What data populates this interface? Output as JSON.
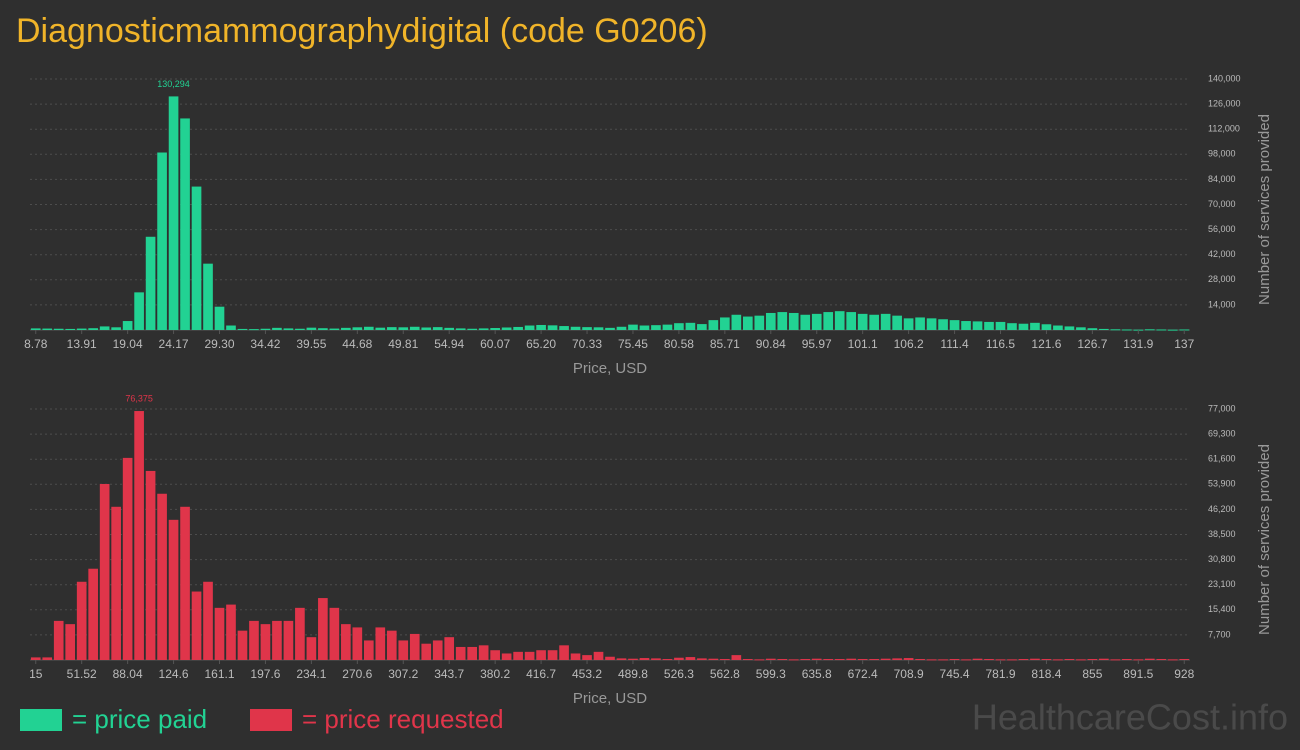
{
  "title": "Diagnosticmammographydigital (code G0206)",
  "watermark": "HealthcareCost.info",
  "chart_data": [
    {
      "type": "bar",
      "xlabel": "Price, USD",
      "ylabel": "Number of services provided",
      "grid": true,
      "categories": [
        "8.78",
        null,
        null,
        null,
        "13.91",
        null,
        null,
        null,
        "19.04",
        null,
        null,
        null,
        "24.17",
        null,
        null,
        null,
        "29.30",
        null,
        null,
        null,
        "34.42",
        null,
        null,
        null,
        "39.55",
        null,
        null,
        null,
        "44.68",
        null,
        null,
        null,
        "49.81",
        null,
        null,
        null,
        "54.94",
        null,
        null,
        null,
        "60.07",
        null,
        null,
        null,
        "65.20",
        null,
        null,
        null,
        "70.33",
        null,
        null,
        null,
        "75.45",
        null,
        null,
        null,
        "80.58",
        null,
        null,
        null,
        "85.71",
        null,
        null,
        null,
        "90.84",
        null,
        null,
        null,
        "95.97",
        null,
        null,
        null,
        "101.1",
        null,
        null,
        null,
        "106.2",
        null,
        null,
        null,
        "111.4",
        null,
        null,
        null,
        "116.5",
        null,
        null,
        null,
        "121.6",
        null,
        null,
        null,
        "126.7",
        null,
        null,
        null,
        "131.9",
        null,
        null,
        null,
        "137"
      ],
      "series": [
        {
          "name": "= price paid",
          "color": "#22d293",
          "values": [
            900,
            800,
            700,
            600,
            800,
            1000,
            2000,
            1500,
            5000,
            21000,
            52000,
            99000,
            130294,
            118000,
            80000,
            37000,
            13000,
            2500,
            600,
            500,
            700,
            1200,
            900,
            700,
            1300,
            1000,
            800,
            1200,
            1500,
            1800,
            1300,
            1600,
            1500,
            1800,
            1400,
            1600,
            1200,
            900,
            700,
            900,
            1100,
            1400,
            1700,
            2500,
            2800,
            2600,
            2200,
            1800,
            1600,
            1500,
            1200,
            1800,
            3000,
            2500,
            2700,
            3000,
            3800,
            4000,
            3300,
            5500,
            7000,
            8500,
            7500,
            8000,
            9500,
            10000,
            9500,
            8500,
            9000,
            10000,
            10500,
            10000,
            9000,
            8500,
            9000,
            8000,
            6500,
            7000,
            6500,
            6000,
            5500,
            5000,
            4800,
            4500,
            4500,
            3800,
            3500,
            4000,
            3200,
            2500,
            2000,
            1500,
            1000,
            600,
            400,
            300,
            200,
            400,
            300,
            200,
            300
          ],
          "value_labels": [
            null,
            null,
            null,
            null,
            null,
            null,
            null,
            null,
            null,
            null,
            null,
            null,
            "130,294",
            null,
            null,
            null,
            null,
            null,
            null,
            null,
            null,
            null,
            null,
            null,
            null,
            null,
            null,
            null,
            null,
            null,
            null,
            null,
            null,
            null,
            null,
            null,
            null,
            null,
            null,
            null,
            null,
            null,
            null,
            null,
            null,
            null,
            null,
            null,
            null,
            null,
            null,
            null,
            null,
            null,
            null,
            null,
            null,
            null,
            null,
            null,
            null,
            null,
            null,
            null,
            null,
            null,
            null,
            null,
            null,
            null,
            null,
            null,
            null,
            null,
            null,
            null,
            null,
            null,
            null,
            null,
            null,
            null,
            null,
            null,
            null,
            null,
            null,
            null,
            null,
            null,
            null,
            null,
            null,
            null,
            null,
            null,
            null,
            null,
            null,
            null,
            null
          ]
        }
      ],
      "ylim": [
        0,
        140000
      ],
      "yticks": [
        {
          "value": 14000,
          "label": "14,000"
        },
        {
          "value": 28000,
          "label": "28,000"
        },
        {
          "value": 42000,
          "label": "42,000"
        },
        {
          "value": 56000,
          "label": "56,000"
        },
        {
          "value": 70000,
          "label": "70,000"
        },
        {
          "value": 84000,
          "label": "84,000"
        },
        {
          "value": 98000,
          "label": "98,000"
        },
        {
          "value": 112000,
          "label": "112,000"
        },
        {
          "value": 126000,
          "label": "126,000"
        },
        {
          "value": 140000,
          "label": "140,000"
        }
      ]
    },
    {
      "type": "bar",
      "xlabel": "Price, USD",
      "ylabel": "Number of services provided",
      "grid": true,
      "categories": [
        "15",
        null,
        null,
        null,
        "51.52",
        null,
        null,
        null,
        "88.04",
        null,
        null,
        null,
        "124.6",
        null,
        null,
        null,
        "161.1",
        null,
        null,
        null,
        "197.6",
        null,
        null,
        null,
        "234.1",
        null,
        null,
        null,
        "270.6",
        null,
        null,
        null,
        "307.2",
        null,
        null,
        null,
        "343.7",
        null,
        null,
        null,
        "380.2",
        null,
        null,
        null,
        "416.7",
        null,
        null,
        null,
        "453.2",
        null,
        null,
        null,
        "489.8",
        null,
        null,
        null,
        "526.3",
        null,
        null,
        null,
        "562.8",
        null,
        null,
        null,
        "599.3",
        null,
        null,
        null,
        "635.8",
        null,
        null,
        null,
        "672.4",
        null,
        null,
        null,
        "708.9",
        null,
        null,
        null,
        "745.4",
        null,
        null,
        null,
        "781.9",
        null,
        null,
        null,
        "818.4",
        null,
        null,
        null,
        "855",
        null,
        null,
        null,
        "891.5",
        null,
        null,
        null,
        "928"
      ],
      "series": [
        {
          "name": "= price requested",
          "color": "#e0354a",
          "values": [
            800,
            800,
            12000,
            11000,
            24000,
            28000,
            54000,
            47000,
            62000,
            76375,
            58000,
            51000,
            43000,
            47000,
            21000,
            24000,
            16000,
            17000,
            9000,
            12000,
            11000,
            12000,
            12000,
            16000,
            7000,
            19000,
            16000,
            11000,
            10000,
            6000,
            10000,
            9000,
            6000,
            8000,
            5000,
            6000,
            7000,
            4000,
            4000,
            4500,
            3000,
            2000,
            2500,
            2500,
            3000,
            3000,
            4500,
            2000,
            1500,
            2500,
            1000,
            500,
            400,
            600,
            500,
            300,
            700,
            900,
            500,
            400,
            300,
            1500,
            300,
            200,
            400,
            300,
            200,
            300,
            400,
            300,
            300,
            400,
            300,
            300,
            400,
            500,
            600,
            300,
            200,
            200,
            300,
            200,
            400,
            300,
            200,
            200,
            300,
            400,
            300,
            200,
            300,
            200,
            300,
            400,
            200,
            300,
            200,
            400,
            300,
            200,
            300
          ],
          "value_labels": [
            null,
            null,
            null,
            null,
            null,
            null,
            null,
            null,
            null,
            "76,375",
            null,
            null,
            null,
            null,
            null,
            null,
            null,
            null,
            null,
            null,
            null,
            null,
            null,
            null,
            null,
            null,
            null,
            null,
            null,
            null,
            null,
            null,
            null,
            null,
            null,
            null,
            null,
            null,
            null,
            null,
            null,
            null,
            null,
            null,
            null,
            null,
            null,
            null,
            null,
            null,
            null,
            null,
            null,
            null,
            null,
            null,
            null,
            null,
            null,
            null,
            null,
            null,
            null,
            null,
            null,
            null,
            null,
            null,
            null,
            null,
            null,
            null,
            null,
            null,
            null,
            null,
            null,
            null,
            null,
            null,
            null,
            null,
            null,
            null,
            null,
            null,
            null,
            null,
            null,
            null,
            null,
            null,
            null,
            null,
            null,
            null,
            null,
            null,
            null,
            null,
            null
          ]
        }
      ],
      "ylim": [
        0,
        77000
      ],
      "yticks": [
        {
          "value": 7700,
          "label": "7,700"
        },
        {
          "value": 15400,
          "label": "15,400"
        },
        {
          "value": 23100,
          "label": "23,100"
        },
        {
          "value": 30800,
          "label": "30,800"
        },
        {
          "value": 38500,
          "label": "38,500"
        },
        {
          "value": 46200,
          "label": "46,200"
        },
        {
          "value": 53900,
          "label": "53,900"
        },
        {
          "value": 61600,
          "label": "61,600"
        },
        {
          "value": 69300,
          "label": "69,300"
        },
        {
          "value": 77000,
          "label": "77,000"
        }
      ]
    }
  ]
}
